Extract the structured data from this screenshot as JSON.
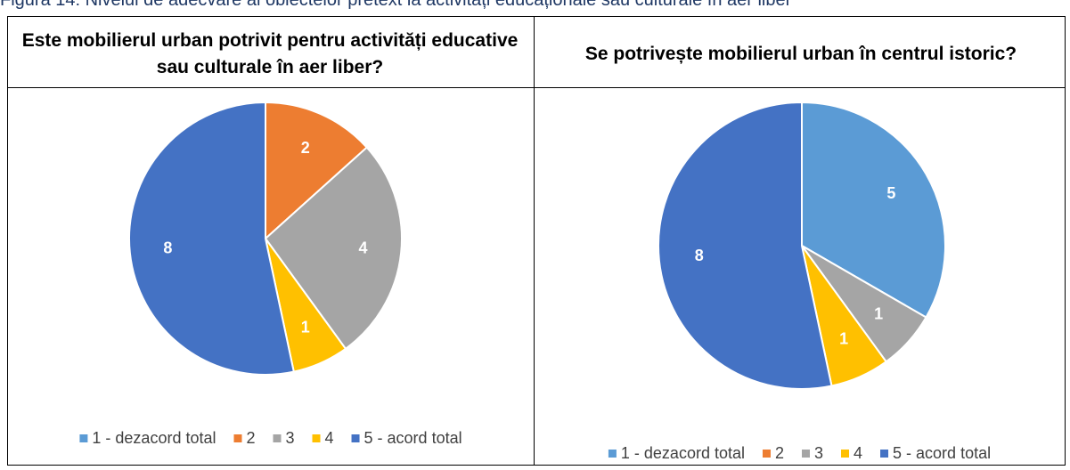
{
  "caption": "Figura 14: Nivelul de adecvare al obiectelor pretext la activități educaționale sau culturale în aer liber",
  "chart_data": [
    {
      "type": "pie",
      "title": "Este mobilierul urban potrivit pentru activități educative sau culturale în aer liber?",
      "categories": [
        "1 - dezacord total",
        "2",
        "3",
        "4",
        "5 - acord total"
      ],
      "values": [
        0,
        2,
        4,
        1,
        8
      ],
      "colors": [
        "#5b9bd5",
        "#ed7d31",
        "#a5a5a5",
        "#ffc000",
        "#4472c4"
      ],
      "legend": "bottom"
    },
    {
      "type": "pie",
      "title": "Se potrivește mobilierul urban în centrul istoric?",
      "categories": [
        "1 - dezacord total",
        "2",
        "3",
        "4",
        "5 - acord total"
      ],
      "values": [
        5,
        0,
        1,
        1,
        8
      ],
      "colors": [
        "#5b9bd5",
        "#ed7d31",
        "#a5a5a5",
        "#ffc000",
        "#4472c4"
      ],
      "legend": "bottom"
    }
  ]
}
